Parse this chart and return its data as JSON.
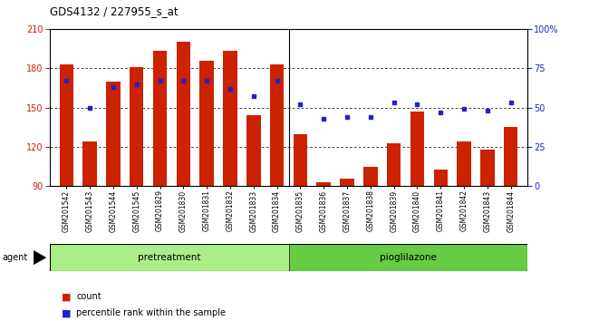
{
  "title": "GDS4132 / 227955_s_at",
  "samples": [
    "GSM201542",
    "GSM201543",
    "GSM201544",
    "GSM201545",
    "GSM201829",
    "GSM201830",
    "GSM201831",
    "GSM201832",
    "GSM201833",
    "GSM201834",
    "GSM201835",
    "GSM201836",
    "GSM201837",
    "GSM201838",
    "GSM201839",
    "GSM201840",
    "GSM201841",
    "GSM201842",
    "GSM201843",
    "GSM201844"
  ],
  "counts": [
    183,
    124,
    170,
    181,
    193,
    200,
    186,
    193,
    144,
    183,
    130,
    93,
    96,
    105,
    123,
    147,
    103,
    124,
    118,
    135
  ],
  "percentile": [
    67,
    50,
    63,
    65,
    67,
    67,
    67,
    62,
    57,
    67,
    52,
    43,
    44,
    44,
    53,
    52,
    47,
    49,
    48,
    53
  ],
  "group1_label": "pretreatment",
  "group2_label": "pioglilazone",
  "group1_count": 10,
  "ylim_left": [
    90,
    210
  ],
  "ylim_right": [
    0,
    100
  ],
  "yticks_left": [
    90,
    120,
    150,
    180,
    210
  ],
  "yticks_right": [
    0,
    25,
    50,
    75,
    100
  ],
  "bar_color": "#cc2200",
  "dot_color": "#2222cc",
  "agent_label": "agent",
  "legend_count": "count",
  "legend_percentile": "percentile rank within the sample",
  "bar_width": 0.6,
  "grid_dotted_at": [
    120,
    150,
    180
  ],
  "right_ytick_labels": [
    "0",
    "25",
    "50",
    "75",
    "100%"
  ]
}
